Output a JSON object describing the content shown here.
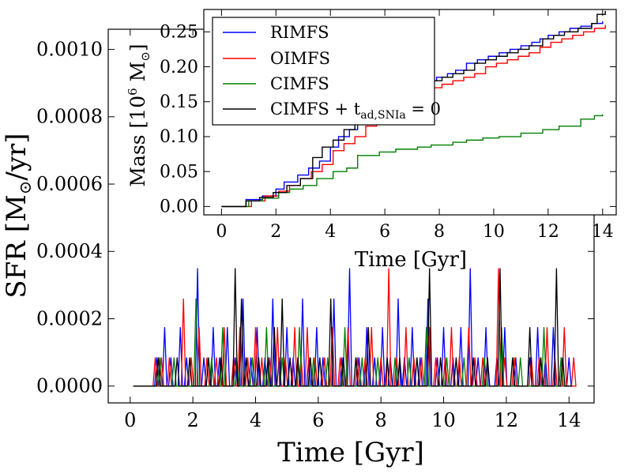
{
  "chart_data": [
    {
      "type": "line",
      "drawstyle": "steps-spikes",
      "title": "",
      "xlabel": "Time [Gyr]",
      "ylabel": "SFR [M☉/yr]",
      "xlim": [
        -0.7,
        14.8
      ],
      "ylim": [
        -5e-05,
        0.00106
      ],
      "xticks": [
        0,
        2,
        4,
        6,
        8,
        10,
        12,
        14
      ],
      "xtick_labels": [
        "0",
        "2",
        "4",
        "6",
        "8",
        "10",
        "12",
        "14"
      ],
      "yticks": [
        0.0,
        0.0002,
        0.0004,
        0.0006,
        0.0008,
        0.001
      ],
      "ytick_labels": [
        "0.0000",
        "0.0002",
        "0.0004",
        "0.0006",
        "0.0008",
        "0.0010"
      ],
      "grid": false,
      "series": [
        {
          "name": "RIMFS",
          "color": "#0000ff",
          "x": [
            0.85,
            1.1,
            1.3,
            1.6,
            1.8,
            2.15,
            2.35,
            2.65,
            2.85,
            3.1,
            3.35,
            3.6,
            3.85,
            4.05,
            4.3,
            4.55,
            4.75,
            5.0,
            5.2,
            5.5,
            5.7,
            5.95,
            6.15,
            6.5,
            6.75,
            7.0,
            7.3,
            7.55,
            7.8,
            8.05,
            8.3,
            8.55,
            8.75,
            9.0,
            9.25,
            9.5,
            9.8,
            10.0,
            10.3,
            10.55,
            10.85,
            11.1,
            11.35,
            11.7,
            11.95,
            12.3,
            12.75,
            13.0,
            13.25,
            13.5,
            13.75,
            14.0
          ],
          "y": [
            8.5e-05,
            0.000175,
            8.5e-05,
            0.000175,
            8.5e-05,
            0.00035,
            8.5e-05,
            0.000175,
            8.5e-05,
            0.000175,
            8.5e-05,
            0.00026,
            8.5e-05,
            0.000175,
            8.5e-05,
            0.00026,
            8.5e-05,
            0.000175,
            8.5e-05,
            0.00026,
            8.5e-05,
            0.000175,
            8.5e-05,
            0.00026,
            8.5e-05,
            0.00035,
            8.5e-05,
            0.000175,
            8.5e-05,
            0.000175,
            8.5e-05,
            0.00026,
            8.5e-05,
            0.000175,
            8.5e-05,
            0.00026,
            8.5e-05,
            0.000175,
            8.5e-05,
            0.000175,
            0.00035,
            8.5e-05,
            0.000175,
            8.5e-05,
            0.000175,
            8.5e-05,
            8.5e-05,
            0.000175,
            8.5e-05,
            0.000175,
            8.5e-05,
            8.5e-05
          ]
        },
        {
          "name": "OIMFS",
          "color": "#ff0000",
          "x": [
            0.8,
            1.0,
            1.25,
            1.7,
            1.95,
            2.2,
            2.45,
            2.75,
            3.0,
            3.3,
            3.5,
            3.75,
            4.0,
            4.2,
            4.45,
            4.7,
            4.95,
            5.25,
            5.45,
            5.65,
            5.9,
            6.2,
            6.45,
            6.7,
            6.95,
            7.25,
            7.5,
            7.7,
            8.0,
            8.25,
            8.5,
            8.8,
            9.05,
            9.3,
            9.55,
            9.75,
            10.05,
            10.25,
            10.5,
            10.8,
            11.0,
            11.25,
            11.75,
            11.95,
            12.25,
            12.8,
            13.05,
            13.3,
            13.55,
            13.85,
            14.15
          ],
          "y": [
            8.5e-05,
            8.5e-05,
            8.5e-05,
            0.00026,
            8.5e-05,
            0.000175,
            8.5e-05,
            8.5e-05,
            0.000175,
            8.5e-05,
            0.000175,
            8.5e-05,
            0.000175,
            8.5e-05,
            8.5e-05,
            0.000175,
            8.5e-05,
            0.000175,
            8.5e-05,
            0.000175,
            8.5e-05,
            8.5e-05,
            0.000175,
            8.5e-05,
            0.000175,
            8.5e-05,
            8.5e-05,
            0.000175,
            8.5e-05,
            0.00035,
            8.5e-05,
            0.000175,
            8.5e-05,
            8.5e-05,
            0.000175,
            8.5e-05,
            8.5e-05,
            0.000175,
            8.5e-05,
            0.000175,
            8.5e-05,
            8.5e-05,
            0.00035,
            8.5e-05,
            8.5e-05,
            8.5e-05,
            8.5e-05,
            0.000175,
            8.5e-05,
            0.000175,
            8.5e-05
          ]
        },
        {
          "name": "CIMFS",
          "color": "#008000",
          "x": [
            0.95,
            1.4,
            2.1,
            2.6,
            2.95,
            3.4,
            3.9,
            4.35,
            4.85,
            5.4,
            5.85,
            6.3,
            6.85,
            7.4,
            7.9,
            8.45,
            8.9,
            9.45,
            10.1,
            10.65,
            11.3,
            11.85,
            12.45,
            13.2,
            13.75
          ],
          "y": [
            8.5e-05,
            8.5e-05,
            0.00026,
            8.5e-05,
            0.000175,
            8.5e-05,
            8.5e-05,
            0.000175,
            8.5e-05,
            0.000175,
            8.5e-05,
            8.5e-05,
            0.000175,
            8.5e-05,
            8.5e-05,
            8.5e-05,
            8.5e-05,
            0.000175,
            8.5e-05,
            8.5e-05,
            8.5e-05,
            0.000175,
            8.5e-05,
            0.000175,
            8.5e-05
          ]
        },
        {
          "name": "CIMFS + t_ad,SNIa = 0",
          "color": "#000000",
          "x": [
            0.9,
            1.5,
            1.9,
            2.5,
            2.9,
            3.35,
            3.55,
            3.7,
            4.1,
            4.4,
            4.6,
            4.85,
            5.1,
            5.35,
            5.75,
            6.05,
            6.4,
            6.8,
            7.2,
            7.6,
            8.2,
            8.6,
            9.15,
            9.55,
            9.9,
            10.4,
            10.95,
            11.4,
            11.8,
            12.2,
            12.75,
            13.1,
            13.6,
            13.8
          ],
          "y": [
            8.5e-05,
            8.5e-05,
            8.5e-05,
            8.5e-05,
            8.5e-05,
            0.00035,
            0.00026,
            8.5e-05,
            8.5e-05,
            8.5e-05,
            0.000175,
            0.00026,
            8.5e-05,
            8.5e-05,
            8.5e-05,
            8.5e-05,
            0.00026,
            8.5e-05,
            8.5e-05,
            0.000175,
            8.5e-05,
            8.5e-05,
            8.5e-05,
            0.00035,
            8.5e-05,
            8.5e-05,
            8.5e-05,
            8.5e-05,
            0.00035,
            8.5e-05,
            0.000175,
            8.5e-05,
            0.00035,
            8.5e-05
          ]
        }
      ]
    },
    {
      "type": "line",
      "drawstyle": "steps",
      "title": "",
      "xlabel": "Time [Gyr]",
      "ylabel": "Mass [10⁶ M☉]",
      "xlim": [
        -0.65,
        14.5
      ],
      "ylim": [
        -0.012,
        0.282
      ],
      "xticks": [
        0,
        2,
        4,
        6,
        8,
        10,
        12,
        14
      ],
      "xtick_labels": [
        "0",
        "2",
        "4",
        "6",
        "8",
        "10",
        "12",
        "14"
      ],
      "yticks": [
        0.0,
        0.05,
        0.1,
        0.15,
        0.2,
        0.25
      ],
      "ytick_labels": [
        "0.00",
        "0.05",
        "0.10",
        "0.15",
        "0.20",
        "0.25"
      ],
      "grid": false,
      "legend": "top-left",
      "series": [
        {
          "name": "RIMFS",
          "color": "#0000ff",
          "x": [
            0,
            0.9,
            1.5,
            2.0,
            2.3,
            2.8,
            3.2,
            3.6,
            4.0,
            4.3,
            4.7,
            5.0,
            5.4,
            5.8,
            6.2,
            6.5,
            6.8,
            7.2,
            7.5,
            7.9,
            8.3,
            8.6,
            9.0,
            9.4,
            9.8,
            10.2,
            10.6,
            11.0,
            11.4,
            11.7,
            12.0,
            12.4,
            12.8,
            13.2,
            13.6,
            14.0
          ],
          "y": [
            0.0,
            0.01,
            0.015,
            0.025,
            0.035,
            0.045,
            0.055,
            0.065,
            0.085,
            0.1,
            0.11,
            0.12,
            0.135,
            0.145,
            0.155,
            0.165,
            0.17,
            0.175,
            0.18,
            0.185,
            0.19,
            0.195,
            0.205,
            0.21,
            0.215,
            0.22,
            0.225,
            0.23,
            0.235,
            0.24,
            0.245,
            0.25,
            0.255,
            0.258,
            0.262,
            0.265
          ]
        },
        {
          "name": "OIMFS",
          "color": "#ff0000",
          "x": [
            0,
            1.1,
            1.6,
            2.1,
            2.5,
            2.9,
            3.3,
            3.7,
            4.1,
            4.5,
            4.9,
            5.3,
            5.7,
            6.1,
            6.5,
            6.9,
            7.3,
            7.7,
            8.1,
            8.5,
            8.9,
            9.3,
            9.7,
            10.1,
            10.5,
            10.9,
            11.3,
            11.7,
            12.1,
            12.5,
            12.9,
            13.3,
            13.7,
            14.1
          ],
          "y": [
            0.0,
            0.008,
            0.015,
            0.022,
            0.03,
            0.04,
            0.05,
            0.06,
            0.08,
            0.09,
            0.1,
            0.115,
            0.13,
            0.14,
            0.15,
            0.16,
            0.165,
            0.17,
            0.175,
            0.18,
            0.185,
            0.19,
            0.2,
            0.205,
            0.21,
            0.215,
            0.22,
            0.228,
            0.235,
            0.24,
            0.245,
            0.25,
            0.255,
            0.26
          ]
        },
        {
          "name": "CIMFS",
          "color": "#008000",
          "x": [
            0,
            1.0,
            1.5,
            2.1,
            2.5,
            3.0,
            3.5,
            4.1,
            4.6,
            5.0,
            5.8,
            6.4,
            7.2,
            7.7,
            8.5,
            9.0,
            9.6,
            10.2,
            11.0,
            11.8,
            12.4,
            13.2,
            13.7,
            14.0
          ],
          "y": [
            0.0,
            0.008,
            0.012,
            0.02,
            0.025,
            0.03,
            0.04,
            0.05,
            0.055,
            0.073,
            0.078,
            0.082,
            0.085,
            0.088,
            0.092,
            0.095,
            0.098,
            0.1,
            0.105,
            0.11,
            0.115,
            0.125,
            0.13,
            0.132
          ]
        },
        {
          "name": "CIMFS + t_ad,SNIa = 0",
          "color": "#000000",
          "x": [
            0,
            0.9,
            1.4,
            1.9,
            2.4,
            2.9,
            3.35,
            3.7,
            4.1,
            4.5,
            4.9,
            5.3,
            5.7,
            6.1,
            6.5,
            6.9,
            7.3,
            7.7,
            8.1,
            8.5,
            8.9,
            9.3,
            9.7,
            10.1,
            10.5,
            10.9,
            11.3,
            11.8,
            12.2,
            12.6,
            13.1,
            13.6,
            13.8,
            14.1
          ],
          "y": [
            0.0,
            0.008,
            0.013,
            0.02,
            0.03,
            0.04,
            0.07,
            0.085,
            0.095,
            0.11,
            0.125,
            0.14,
            0.148,
            0.155,
            0.165,
            0.17,
            0.175,
            0.18,
            0.185,
            0.19,
            0.195,
            0.205,
            0.21,
            0.215,
            0.22,
            0.225,
            0.23,
            0.24,
            0.245,
            0.25,
            0.255,
            0.262,
            0.275,
            0.28
          ]
        }
      ]
    }
  ],
  "legend": {
    "entries": [
      {
        "label": "RIMFS",
        "color": "#0000ff"
      },
      {
        "label": "OIMFS",
        "color": "#ff0000"
      },
      {
        "label": "CIMFS",
        "color": "#008000"
      },
      {
        "label_main": "CIMFS + t",
        "label_sub": "ad,SNIa",
        "label_tail": " = 0",
        "color": "#000000"
      }
    ]
  },
  "ylabel_parts": {
    "outer_pre": "SFR [M",
    "outer_sun": "⊙",
    "outer_post": "/yr]",
    "inset_pre": "Mass [10",
    "inset_exp": "6",
    "inset_mid": " M",
    "inset_sun": "⊙",
    "inset_post": "]"
  }
}
